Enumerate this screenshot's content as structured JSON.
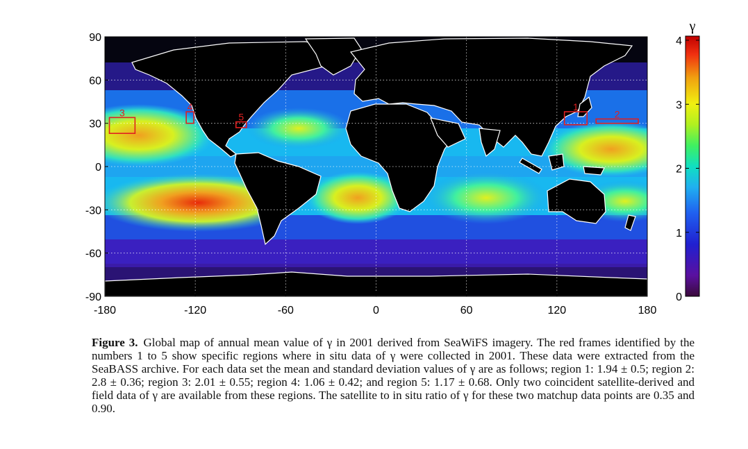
{
  "map": {
    "x_ticks": [
      "-180",
      "-120",
      "-60",
      "0",
      "60",
      "120",
      "180"
    ],
    "y_ticks": [
      "90",
      "60",
      "30",
      "0",
      "-30",
      "-60",
      "-90"
    ],
    "x_range": [
      -180,
      180
    ],
    "y_range": [
      -90,
      90
    ],
    "grid": "dotted",
    "background_ocean_color_scale": "rainbow",
    "land_color": "#000000",
    "coast_color": "#ffffff",
    "regions": [
      {
        "label": "1",
        "lon": [
          125,
          140
        ],
        "lat": [
          29,
          38
        ]
      },
      {
        "label": "2",
        "lon": [
          146,
          174
        ],
        "lat": [
          30,
          33
        ]
      },
      {
        "label": "3",
        "lon": [
          -177,
          -160
        ],
        "lat": [
          23,
          34
        ]
      },
      {
        "label": "4",
        "lon": [
          -126,
          -121
        ],
        "lat": [
          30,
          38
        ]
      },
      {
        "label": "5",
        "lon": [
          -93,
          -86
        ],
        "lat": [
          27,
          31
        ]
      }
    ],
    "region_color": "#e02020",
    "colorbar": {
      "title": "γ",
      "ticks": [
        "0",
        "1",
        "2",
        "3",
        "4"
      ],
      "range": [
        0,
        4
      ]
    }
  },
  "caption": {
    "label": "Figure 3.",
    "text": "Global map of annual mean value of γ in 2001 derived from SeaWiFS imagery. The red frames identified by the numbers 1 to 5 show specific regions where in situ data of γ were collected in 2001. These data were extracted from the SeaBASS archive. For each data set the mean and standard deviation values of γ are as follows; region 1: 1.94 ± 0.5; region 2: 2.8 ± 0.36; region 3: 2.01 ± 0.55; region 4: 1.06 ± 0.42; and region 5: 1.17 ± 0.68. Only two coincident satellite-derived and field data of γ are available from these regions. The satellite to in situ ratio of γ for these two matchup data points are 0.35 and 0.90."
  }
}
